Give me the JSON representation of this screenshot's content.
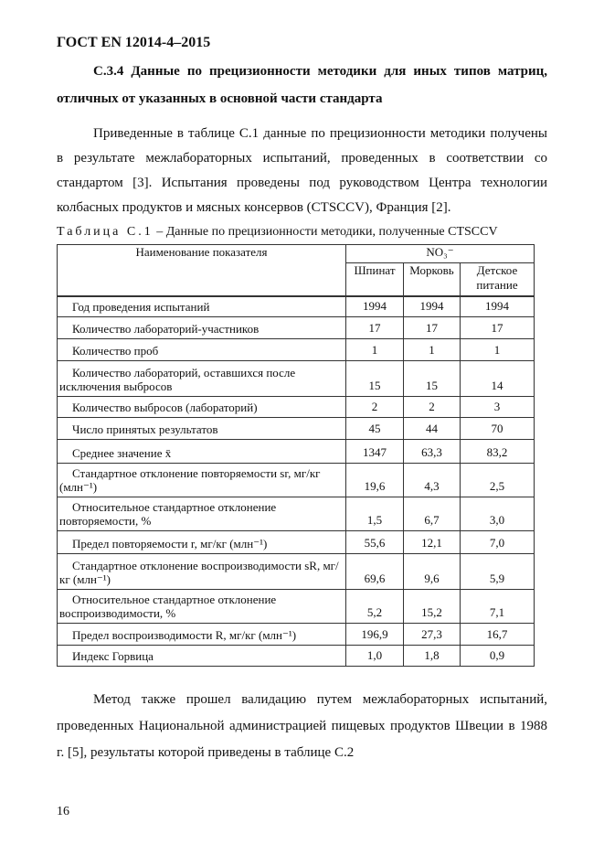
{
  "header": "ГОСТ EN 12014-4–2015",
  "heading": "С.3.4 Данные по прецизионности методики для иных типов матриц, отличных от указанных в основной части стандарта",
  "para1": "Приведенные в таблице С.1 данные по прецизионности методики получены в результате межлабораторных испытаний, проведенных в соответствии со стандартом [3]. Испытания проведены под руководством Центра технологии колбасных продуктов и мясных консервов (CTSCCV), Франция [2].",
  "caption": {
    "label": "Таблица С.1",
    "text": " – Данные по прецизионности методики, полученные CTSCCV"
  },
  "table": {
    "col_name": "Наименование показателя",
    "group": "NO₃⁻",
    "cols": [
      "Шпинат",
      "Морковь",
      "Детское питание"
    ],
    "rows": [
      {
        "name": "Год проведения испытаний",
        "v": [
          "1994",
          "1994",
          "1994"
        ]
      },
      {
        "name": "Количество лабораторий-участников",
        "v": [
          "17",
          "17",
          "17"
        ]
      },
      {
        "name": "Количество проб",
        "v": [
          "1",
          "1",
          "1"
        ]
      },
      {
        "name": "Количество лабораторий, оставшихся после исключения выбросов",
        "v": [
          "15",
          "15",
          "14"
        ]
      },
      {
        "name": "Количество выбросов (лабораторий)",
        "v": [
          "2",
          "2",
          "3"
        ]
      },
      {
        "name": "Число принятых результатов",
        "v": [
          "45",
          "44",
          "70"
        ]
      },
      {
        "name": "Среднее значение x̄",
        "v": [
          "1347",
          "63,3",
          "83,2"
        ]
      },
      {
        "name": "Стандартное отклонение повторяемости sr, мг/кг (млн⁻¹)",
        "v": [
          "19,6",
          "4,3",
          "2,5"
        ]
      },
      {
        "name": "Относительное стандартное отклонение повторяемости, %",
        "v": [
          "1,5",
          "6,7",
          "3,0"
        ]
      },
      {
        "name": "Предел повторяемости r, мг/кг (млн⁻¹)",
        "v": [
          "55,6",
          "12,1",
          "7,0"
        ]
      },
      {
        "name": "Стандартное отклонение воспроизводимости sR, мг/кг (млн⁻¹)",
        "v": [
          "69,6",
          "9,6",
          "5,9"
        ]
      },
      {
        "name": "Относительное стандартное отклонение воспроизводимости, %",
        "v": [
          "5,2",
          "15,2",
          "7,1"
        ]
      },
      {
        "name": "Предел воспроизводимости R, мг/кг (млн⁻¹)",
        "v": [
          "196,9",
          "27,3",
          "16,7"
        ]
      },
      {
        "name": "Индекс Горвица",
        "v": [
          "1,0",
          "1,8",
          "0,9"
        ]
      }
    ]
  },
  "para2": "Метод также прошел валидацию путем межлабораторных испытаний, проведенных Национальной администрацией пищевых продуктов Швеции в 1988 г. [5], результаты которой приведены в таблице С.2",
  "page_number": "16"
}
